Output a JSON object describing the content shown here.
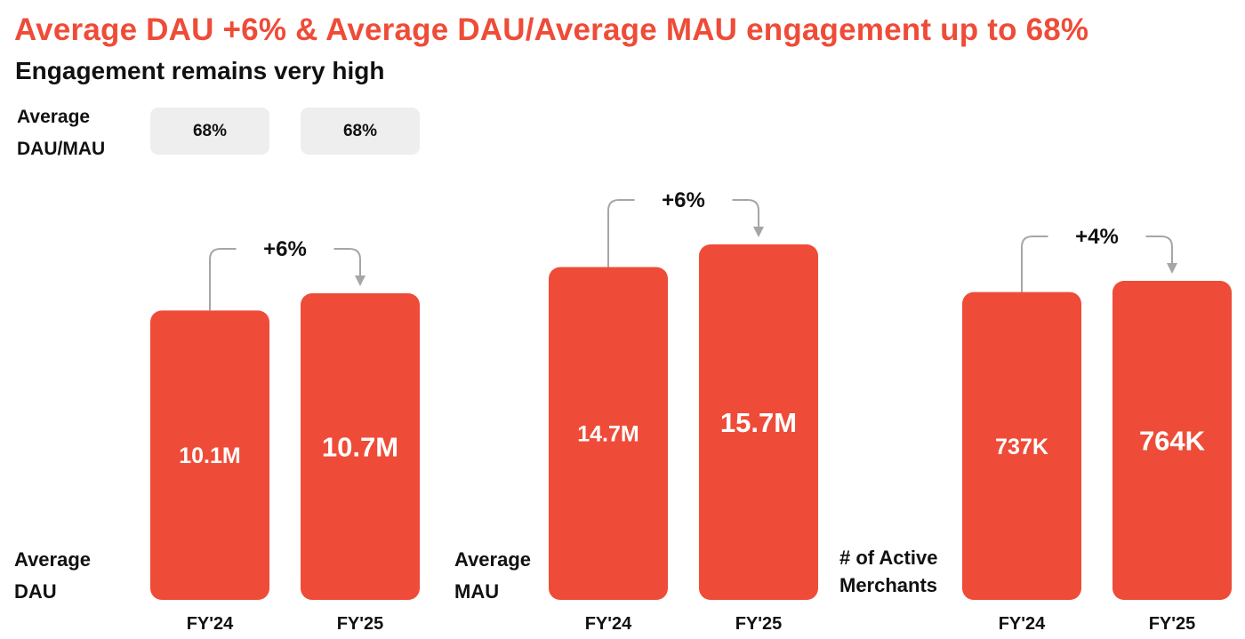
{
  "header": {
    "title": "Average DAU +6% & Average DAU/Average MAU engagement up to 68%",
    "subtitle": "Engagement remains very high"
  },
  "engagement": {
    "label_lines": [
      "Average",
      "DAU/MAU"
    ],
    "values": [
      "68%",
      "68%"
    ]
  },
  "colors": {
    "bar": "#ee4c38",
    "title": "#ee4c38",
    "pill": "#eeeeee",
    "connector": "#a6a6a6"
  },
  "chart_data": [
    {
      "type": "bar",
      "label_lines": [
        "Average",
        "DAU"
      ],
      "categories": [
        "FY'24",
        "FY'25"
      ],
      "values": [
        10.1,
        10.7
      ],
      "unit": "M",
      "value_labels": [
        "10.1M",
        "10.7M"
      ],
      "growth": "+6%"
    },
    {
      "type": "bar",
      "label_lines": [
        "Average",
        "MAU"
      ],
      "categories": [
        "FY'24",
        "FY'25"
      ],
      "values": [
        14.7,
        15.7
      ],
      "unit": "M",
      "value_labels": [
        "14.7M",
        "15.7M"
      ],
      "growth": "+6%"
    },
    {
      "type": "bar",
      "label_lines": [
        "# of Active",
        "Merchants"
      ],
      "categories": [
        "FY'24",
        "FY'25"
      ],
      "values": [
        737,
        764
      ],
      "unit": "K",
      "value_labels": [
        "737K",
        "764K"
      ],
      "growth": "+4%"
    }
  ]
}
